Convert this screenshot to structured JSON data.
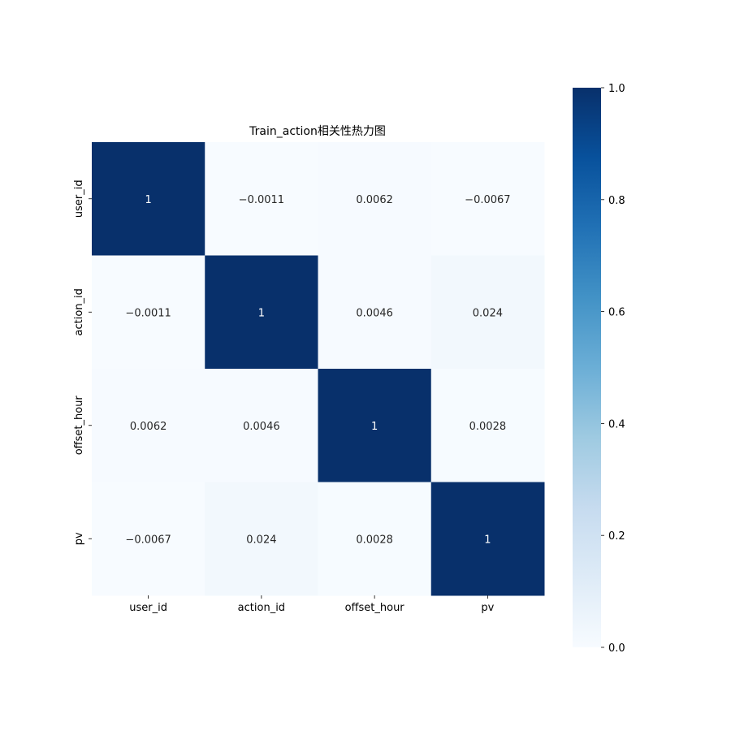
{
  "chart_data": {
    "type": "heatmap",
    "title": "Train_action相关性热力图",
    "x_categories": [
      "user_id",
      "action_id",
      "offset_hour",
      "pv"
    ],
    "y_categories": [
      "user_id",
      "action_id",
      "offset_hour",
      "pv"
    ],
    "values": [
      [
        1,
        -0.0011,
        0.0062,
        -0.0067
      ],
      [
        -0.0011,
        1,
        0.0046,
        0.024
      ],
      [
        0.0062,
        0.0046,
        1,
        0.0028
      ],
      [
        -0.0067,
        0.024,
        0.0028,
        1
      ]
    ],
    "cell_labels": [
      [
        "1",
        "−0.0011",
        "0.0062",
        "−0.0067"
      ],
      [
        "−0.0011",
        "1",
        "0.0046",
        "0.024"
      ],
      [
        "0.0062",
        "0.0046",
        "1",
        "0.0028"
      ],
      [
        "−0.0067",
        "0.024",
        "0.0028",
        "1"
      ]
    ],
    "colorbar": {
      "colormap": "Blues",
      "range": [
        0,
        1
      ],
      "ticks": [
        0.0,
        0.2,
        0.4,
        0.6,
        0.8,
        1.0
      ],
      "tick_labels": [
        "0.0",
        "0.2",
        "0.4",
        "0.6",
        "0.8",
        "1.0"
      ]
    },
    "colors": {
      "low": "#f7fbff",
      "high": "#08306b"
    },
    "grid": false,
    "legend": "colorbar-right"
  }
}
